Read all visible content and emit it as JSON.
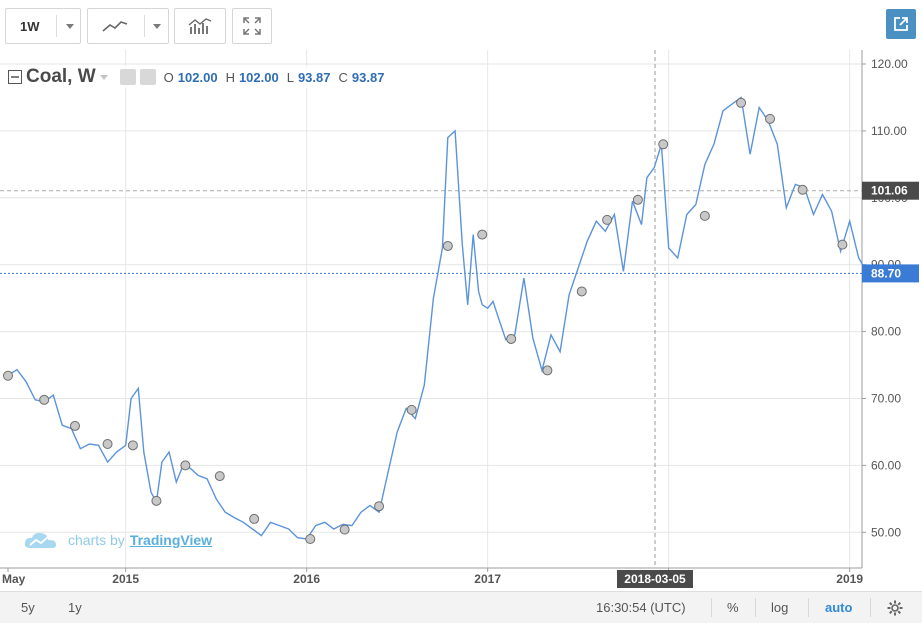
{
  "toolbar": {
    "interval": "1W",
    "line_style_icon": "line-chart-icon",
    "indicators_icon": "indicators-icon",
    "fullscreen_icon": "fullscreen-icon",
    "popout_icon": "popout-icon"
  },
  "legend": {
    "symbol": "Coal, W",
    "o_label": "O",
    "o_value": "102.00",
    "h_label": "H",
    "h_value": "102.00",
    "l_label": "L",
    "l_value": "93.87",
    "c_label": "C",
    "c_value": "93.87"
  },
  "watermark": {
    "prefix": "charts by",
    "brand": "TradingView"
  },
  "price_axis": {
    "labels": [
      "120.00",
      "110.00",
      "100.00",
      "90.00",
      "80.00",
      "70.00",
      "60.00",
      "50.00"
    ],
    "crosshair_label": "101.06",
    "last_price_label": "88.70"
  },
  "time_axis": {
    "labels": [
      "May",
      "2015",
      "2016",
      "2017",
      "2018",
      "2019"
    ],
    "crosshair_label": "2018-03-05"
  },
  "footer": {
    "range_5y": "5y",
    "range_1y": "1y",
    "clock": "16:30:54 (UTC)",
    "percent": "%",
    "log": "log",
    "auto": "auto",
    "settings_icon": "gear-icon"
  },
  "colors": {
    "line": "#5b93dc",
    "last_price": "#3a7bd5",
    "crosshair_tag": "#4a4a4a",
    "auto_active": "#2f8ad8"
  },
  "chart_data": {
    "type": "line",
    "title": "Coal, W",
    "xlabel": "",
    "ylabel": "",
    "ylim": [
      45,
      122
    ],
    "xlim": [
      2014.35,
      2019.35
    ],
    "x_tick_labels": [
      "May",
      "2015",
      "2016",
      "2017",
      "2018",
      "2019"
    ],
    "y_tick_labels": [
      "120.00",
      "110.00",
      "100.00",
      "90.00",
      "80.00",
      "70.00",
      "60.00",
      "50.00"
    ],
    "grid": true,
    "legend": "top-left",
    "series": [
      {
        "name": "Coal, W",
        "x": [
          2014.35,
          2014.4,
          2014.45,
          2014.5,
          2014.55,
          2014.6,
          2014.65,
          2014.7,
          2014.75,
          2014.8,
          2014.85,
          2014.9,
          2014.95,
          2015.0,
          2015.03,
          2015.07,
          2015.1,
          2015.14,
          2015.17,
          2015.2,
          2015.24,
          2015.28,
          2015.32,
          2015.36,
          2015.4,
          2015.45,
          2015.5,
          2015.55,
          2015.6,
          2015.65,
          2015.7,
          2015.75,
          2015.8,
          2015.85,
          2015.9,
          2015.95,
          2016.0,
          2016.05,
          2016.1,
          2016.15,
          2016.2,
          2016.25,
          2016.3,
          2016.35,
          2016.4,
          2016.45,
          2016.5,
          2016.55,
          2016.6,
          2016.65,
          2016.7,
          2016.75,
          2016.78,
          2016.82,
          2016.86,
          2016.89,
          2016.92,
          2016.95,
          2016.97,
          2017.0,
          2017.03,
          2017.06,
          2017.1,
          2017.15,
          2017.2,
          2017.25,
          2017.3,
          2017.35,
          2017.4,
          2017.45,
          2017.5,
          2017.55,
          2017.6,
          2017.65,
          2017.7,
          2017.75,
          2017.8,
          2017.85,
          2017.88,
          2017.92,
          2017.96,
          2018.0,
          2018.05,
          2018.1,
          2018.15,
          2018.2,
          2018.25,
          2018.3,
          2018.35,
          2018.4,
          2018.45,
          2018.5,
          2018.55,
          2018.6,
          2018.65,
          2018.7,
          2018.75,
          2018.8,
          2018.85,
          2018.9,
          2018.95,
          2019.0,
          2019.05,
          2019.1,
          2019.15,
          2019.2
        ],
        "y": [
          73.5,
          74.3,
          72.5,
          69.8,
          69.5,
          70.5,
          66.0,
          65.5,
          62.5,
          63.2,
          63.0,
          60.5,
          62.0,
          63.0,
          70.0,
          71.5,
          62.0,
          56.0,
          54.5,
          60.5,
          62.0,
          57.5,
          60.2,
          59.5,
          58.5,
          58.0,
          55.0,
          53.0,
          52.2,
          51.5,
          50.5,
          49.5,
          51.5,
          51.0,
          50.5,
          49.2,
          49.0,
          51.0,
          51.5,
          50.5,
          51.2,
          51.0,
          53.0,
          54.0,
          53.0,
          59.0,
          65.0,
          68.5,
          67.0,
          72.0,
          85.0,
          92.5,
          109.0,
          110.0,
          93.0,
          84.0,
          94.5,
          86.0,
          84.0,
          83.5,
          84.5,
          82.0,
          78.8,
          79.5,
          88.0,
          79.0,
          74.2,
          79.5,
          77.0,
          85.5,
          89.5,
          93.5,
          96.5,
          95.0,
          97.5,
          89.0,
          99.5,
          96.0,
          103.0,
          104.5,
          108.0,
          92.5,
          91.0,
          97.5,
          99.0,
          105.0,
          108.0,
          113.0,
          114.0,
          115.0,
          106.5,
          113.5,
          111.5,
          108.0,
          98.5,
          102.0,
          101.5,
          97.5,
          100.5,
          98.0,
          92.0,
          96.5,
          91.0,
          88.7,
          88.7,
          88.7
        ],
        "markers_x": [
          2014.35,
          2014.55,
          2014.72,
          2014.9,
          2015.04,
          2015.17,
          2015.33,
          2015.52,
          2015.71,
          2016.02,
          2016.21,
          2016.4,
          2016.58,
          2016.78,
          2016.97,
          2017.13,
          2017.33,
          2017.52,
          2017.66,
          2017.83,
          2017.97,
          2018.2,
          2018.4,
          2018.56,
          2018.74,
          2018.96
        ],
        "markers_y": [
          73.4,
          69.8,
          65.9,
          63.2,
          63.0,
          54.7,
          60.0,
          58.4,
          52.0,
          49.0,
          50.4,
          53.9,
          68.3,
          92.8,
          94.5,
          78.9,
          74.2,
          86.0,
          96.7,
          99.7,
          108.0,
          97.3,
          114.2,
          111.8,
          101.2,
          93.0
        ]
      }
    ],
    "crosshair": {
      "x_label": "2018-03-05",
      "y_label": "101.06"
    },
    "last_price": 88.7
  }
}
